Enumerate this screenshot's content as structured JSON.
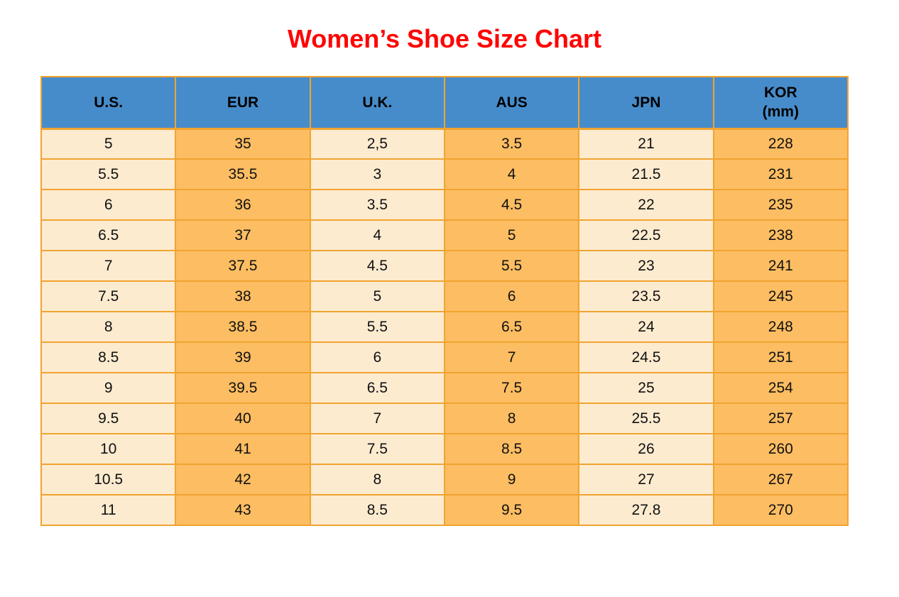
{
  "title": "Women’s Shoe Size Chart",
  "colors": {
    "title_red": "#fe0505",
    "header_blue": "#478cca",
    "cell_cream": "#fdebd0",
    "cell_orange": "#fdbd62",
    "border_orange": "#f0a430"
  },
  "chart_data": {
    "type": "table",
    "title": "Women’s Shoe Size Chart",
    "columns": [
      {
        "label": "U.S.",
        "sublabel": ""
      },
      {
        "label": "EUR",
        "sublabel": ""
      },
      {
        "label": "U.K.",
        "sublabel": ""
      },
      {
        "label": "AUS",
        "sublabel": ""
      },
      {
        "label": "JPN",
        "sublabel": ""
      },
      {
        "label": "KOR",
        "sublabel": "(mm)"
      }
    ],
    "rows": [
      [
        "5",
        "35",
        "2,5",
        "3.5",
        "21",
        "228"
      ],
      [
        "5.5",
        "35.5",
        "3",
        "4",
        "21.5",
        "231"
      ],
      [
        "6",
        "36",
        "3.5",
        "4.5",
        "22",
        "235"
      ],
      [
        "6.5",
        "37",
        "4",
        "5",
        "22.5",
        "238"
      ],
      [
        "7",
        "37.5",
        "4.5",
        "5.5",
        "23",
        "241"
      ],
      [
        "7.5",
        "38",
        "5",
        "6",
        "23.5",
        "245"
      ],
      [
        "8",
        "38.5",
        "5.5",
        "6.5",
        "24",
        "248"
      ],
      [
        "8.5",
        "39",
        "6",
        "7",
        "24.5",
        "251"
      ],
      [
        "9",
        "39.5",
        "6.5",
        "7.5",
        "25",
        "254"
      ],
      [
        "9.5",
        "40",
        "7",
        "8",
        "25.5",
        "257"
      ],
      [
        "10",
        "41",
        "7.5",
        "8.5",
        "26",
        "260"
      ],
      [
        "10.5",
        "42",
        "8",
        "9",
        "27",
        "267"
      ],
      [
        "11",
        "43",
        "8.5",
        "9.5",
        "27.8",
        "270"
      ]
    ]
  }
}
